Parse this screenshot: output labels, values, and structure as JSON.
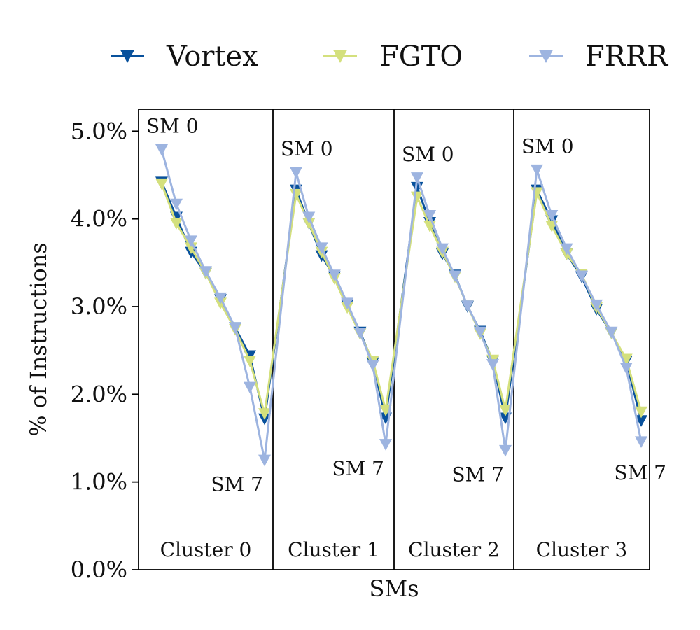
{
  "chart_data": {
    "type": "line",
    "xlabel": "SMs",
    "ylabel": "% of Instructions",
    "ylim": [
      0,
      5.25
    ],
    "yticks": [
      0,
      1,
      2,
      3,
      4,
      5
    ],
    "ytick_labels": [
      "0.0%",
      "1.0%",
      "2.0%",
      "3.0%",
      "4.0%",
      "5.0%"
    ],
    "grid": false,
    "legend_placement": "top, outside plot",
    "x": [
      0,
      1,
      2,
      3,
      4,
      5,
      6,
      7,
      8,
      9,
      10,
      11,
      12,
      13,
      14,
      15,
      16,
      17,
      18,
      19,
      20,
      21,
      22,
      23,
      24,
      25,
      26,
      27,
      28,
      29,
      30,
      31
    ],
    "clusters": [
      {
        "label": "Cluster 0",
        "start": 0,
        "end": 7
      },
      {
        "label": "Cluster 1",
        "start": 8,
        "end": 15
      },
      {
        "label": "Cluster 2",
        "start": 16,
        "end": 23
      },
      {
        "label": "Cluster 3",
        "start": 24,
        "end": 31
      }
    ],
    "series": [
      {
        "name": "Vortex",
        "color": "#08519c",
        "values": [
          4.42,
          4.02,
          3.62,
          3.38,
          3.08,
          2.76,
          2.44,
          1.72,
          4.33,
          3.95,
          3.58,
          3.34,
          3.02,
          2.71,
          2.36,
          1.73,
          4.36,
          3.96,
          3.6,
          3.36,
          3.0,
          2.72,
          2.38,
          1.73,
          4.33,
          3.98,
          3.6,
          3.34,
          2.97,
          2.7,
          2.38,
          1.7
        ]
      },
      {
        "name": "FGTO",
        "color": "#d4e07d",
        "values": [
          4.4,
          3.95,
          3.67,
          3.38,
          3.04,
          2.74,
          2.38,
          1.78,
          4.28,
          3.95,
          3.62,
          3.32,
          2.99,
          2.69,
          2.38,
          1.82,
          4.25,
          3.92,
          3.62,
          3.34,
          3.01,
          2.69,
          2.39,
          1.82,
          4.3,
          3.92,
          3.6,
          3.37,
          2.99,
          2.7,
          2.4,
          1.8
        ]
      },
      {
        "name": "FRRR",
        "color": "#9db4e0",
        "values": [
          4.79,
          4.17,
          3.75,
          3.4,
          3.1,
          2.76,
          2.08,
          1.25,
          4.53,
          4.02,
          3.67,
          3.36,
          3.04,
          2.7,
          2.33,
          1.43,
          4.47,
          4.04,
          3.66,
          3.35,
          3.01,
          2.71,
          2.34,
          1.36,
          4.56,
          4.04,
          3.66,
          3.35,
          3.02,
          2.71,
          2.3,
          1.46
        ]
      }
    ],
    "annotations": [
      {
        "text": "SM 0",
        "cluster": 0,
        "which": "first"
      },
      {
        "text": "SM 7",
        "cluster": 0,
        "which": "last"
      },
      {
        "text": "SM 0",
        "cluster": 1,
        "which": "first"
      },
      {
        "text": "SM 7",
        "cluster": 1,
        "which": "last"
      },
      {
        "text": "SM 0",
        "cluster": 2,
        "which": "first"
      },
      {
        "text": "SM 7",
        "cluster": 2,
        "which": "last"
      },
      {
        "text": "SM 0",
        "cluster": 3,
        "which": "first"
      },
      {
        "text": "SM 7",
        "cluster": 3,
        "which": "last"
      }
    ]
  }
}
